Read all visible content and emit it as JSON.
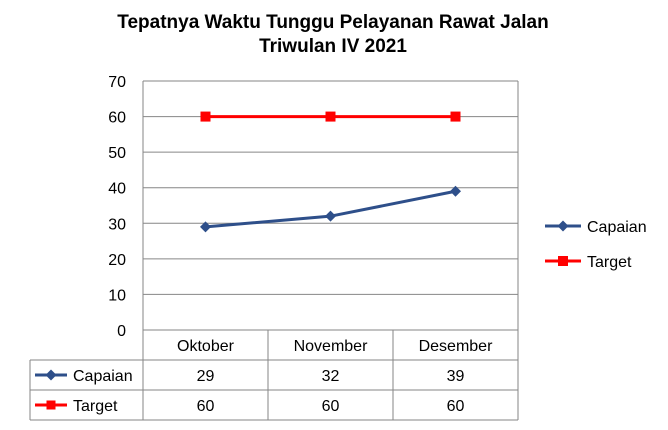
{
  "chart_data": {
    "type": "line",
    "title": "Tepatnya Waktu Tunggu Pelayanan Rawat Jalan",
    "subtitle": "Triwulan IV 2021",
    "categories": [
      "Oktober",
      "November",
      "Desember"
    ],
    "ylim": [
      0,
      70
    ],
    "yticks": [
      0,
      10,
      20,
      30,
      40,
      50,
      60,
      70
    ],
    "grid": true,
    "legend_position": "right",
    "data_table": true,
    "series": [
      {
        "name": "Capaian",
        "values": [
          29,
          32,
          39
        ],
        "color": "#2E4F8A",
        "marker": "diamond"
      },
      {
        "name": "Target",
        "values": [
          60,
          60,
          60
        ],
        "color": "#FF0000",
        "marker": "square"
      }
    ]
  }
}
